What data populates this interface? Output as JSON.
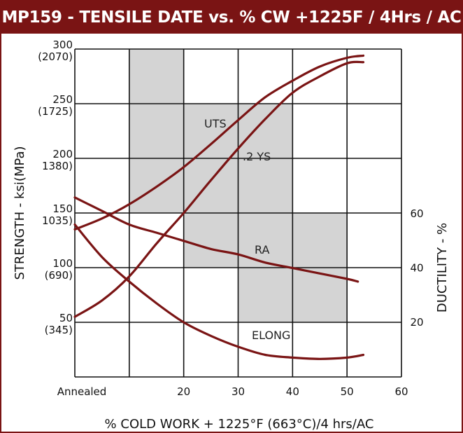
{
  "chart_data": {
    "type": "line",
    "title": "MP159 - TENSILE DATE vs. % CW +1225F / 4Hrs / AC",
    "xlabel": "% COLD WORK + 1225°F (663°C)/4 hrs/AC",
    "ylabel_left": "STRENGTH - ksi(MPa)",
    "ylabel_right": "DUCTILITY - %",
    "xlim": [
      0,
      60
    ],
    "x_ticks": [
      {
        "value": 0,
        "label": "Annealed"
      },
      {
        "value": 20,
        "label": "20"
      },
      {
        "value": 30,
        "label": "30"
      },
      {
        "value": 40,
        "label": "40"
      },
      {
        "value": 50,
        "label": "50"
      },
      {
        "value": 60,
        "label": "60"
      }
    ],
    "ylim_left": [
      50,
      300
    ],
    "y_left_ticks": [
      {
        "value": 300,
        "label": "300",
        "sub": "(2070)"
      },
      {
        "value": 250,
        "label": "250",
        "sub": "(1725)"
      },
      {
        "value": 200,
        "label": "200",
        "sub": "1380)"
      },
      {
        "value": 150,
        "label": "150",
        "sub": "1035)"
      },
      {
        "value": 100,
        "label": "100",
        "sub": "(690)"
      },
      {
        "value": 50,
        "label": "50",
        "sub": "(345)"
      }
    ],
    "y_right_ticks": [
      {
        "value": 60,
        "label": "60"
      },
      {
        "value": 40,
        "label": "40"
      },
      {
        "value": 20,
        "label": "20"
      }
    ],
    "grid": true,
    "colors": {
      "line": "#7a1414",
      "shade": "#d4d4d4",
      "grid": "#111111",
      "title_bg": "#7a1414"
    },
    "series": [
      {
        "name": "UTS",
        "axis": "left",
        "x": [
          0,
          5,
          10,
          15,
          20,
          25,
          30,
          35,
          40,
          45,
          50,
          53
        ],
        "values": [
          135,
          145,
          158,
          174,
          192,
          213,
          235,
          256,
          271,
          284,
          292,
          294
        ]
      },
      {
        "name": ".2 YS",
        "axis": "left",
        "x": [
          0,
          5,
          10,
          15,
          20,
          25,
          30,
          35,
          40,
          45,
          50,
          53
        ],
        "values": [
          55,
          70,
          92,
          122,
          150,
          180,
          209,
          236,
          260,
          275,
          287,
          288
        ]
      },
      {
        "name": "RA",
        "axis": "right",
        "x": [
          0,
          5,
          10,
          15,
          20,
          25,
          30,
          35,
          40,
          45,
          50,
          52
        ],
        "values": [
          66,
          61,
          56,
          53,
          50,
          47,
          45,
          42,
          40,
          38,
          36,
          35
        ]
      },
      {
        "name": "ELONG",
        "axis": "right",
        "x": [
          0,
          5,
          10,
          15,
          20,
          25,
          30,
          35,
          40,
          45,
          50,
          53
        ],
        "values": [
          56,
          44,
          35,
          27,
          20,
          15,
          11,
          8,
          7,
          6.5,
          7,
          8
        ]
      }
    ],
    "shaded_regions": [
      {
        "x": [
          10,
          20
        ],
        "y": [
          150,
          300
        ]
      },
      {
        "x": [
          20,
          30
        ],
        "y": [
          100,
          250
        ]
      },
      {
        "x": [
          30,
          40
        ],
        "y": [
          50,
          250
        ]
      },
      {
        "x": [
          40,
          50
        ],
        "y": [
          50,
          150
        ]
      }
    ]
  }
}
